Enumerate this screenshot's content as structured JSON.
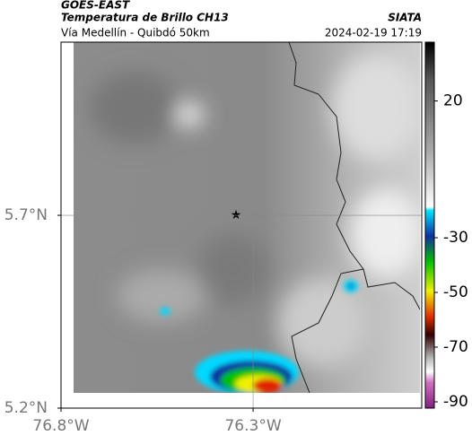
{
  "header": {
    "source": "GOES-EAST",
    "title": "Temperatura de Brillo CH13",
    "organization": "SIATA",
    "subtitle": "Vía Medellín - Quibdó 50km",
    "timestamp": "2024-02-19 17:19"
  },
  "map": {
    "lon_range": [
      -76.8,
      -75.861
    ],
    "lat_range": [
      5.2,
      6.149
    ],
    "lon_ticks": [
      {
        "value": -76.8,
        "label": "76.8°W"
      },
      {
        "value": -76.3,
        "label": "76.3°W"
      }
    ],
    "lat_ticks": [
      {
        "value": 5.2,
        "label": "5.2°N"
      },
      {
        "value": 5.7,
        "label": "5.7°N"
      }
    ],
    "grid": true
  },
  "colorbar": {
    "range": [
      41.5,
      -92.3
    ],
    "ticks": [
      20,
      -30,
      -50,
      -70,
      -90
    ]
  }
}
